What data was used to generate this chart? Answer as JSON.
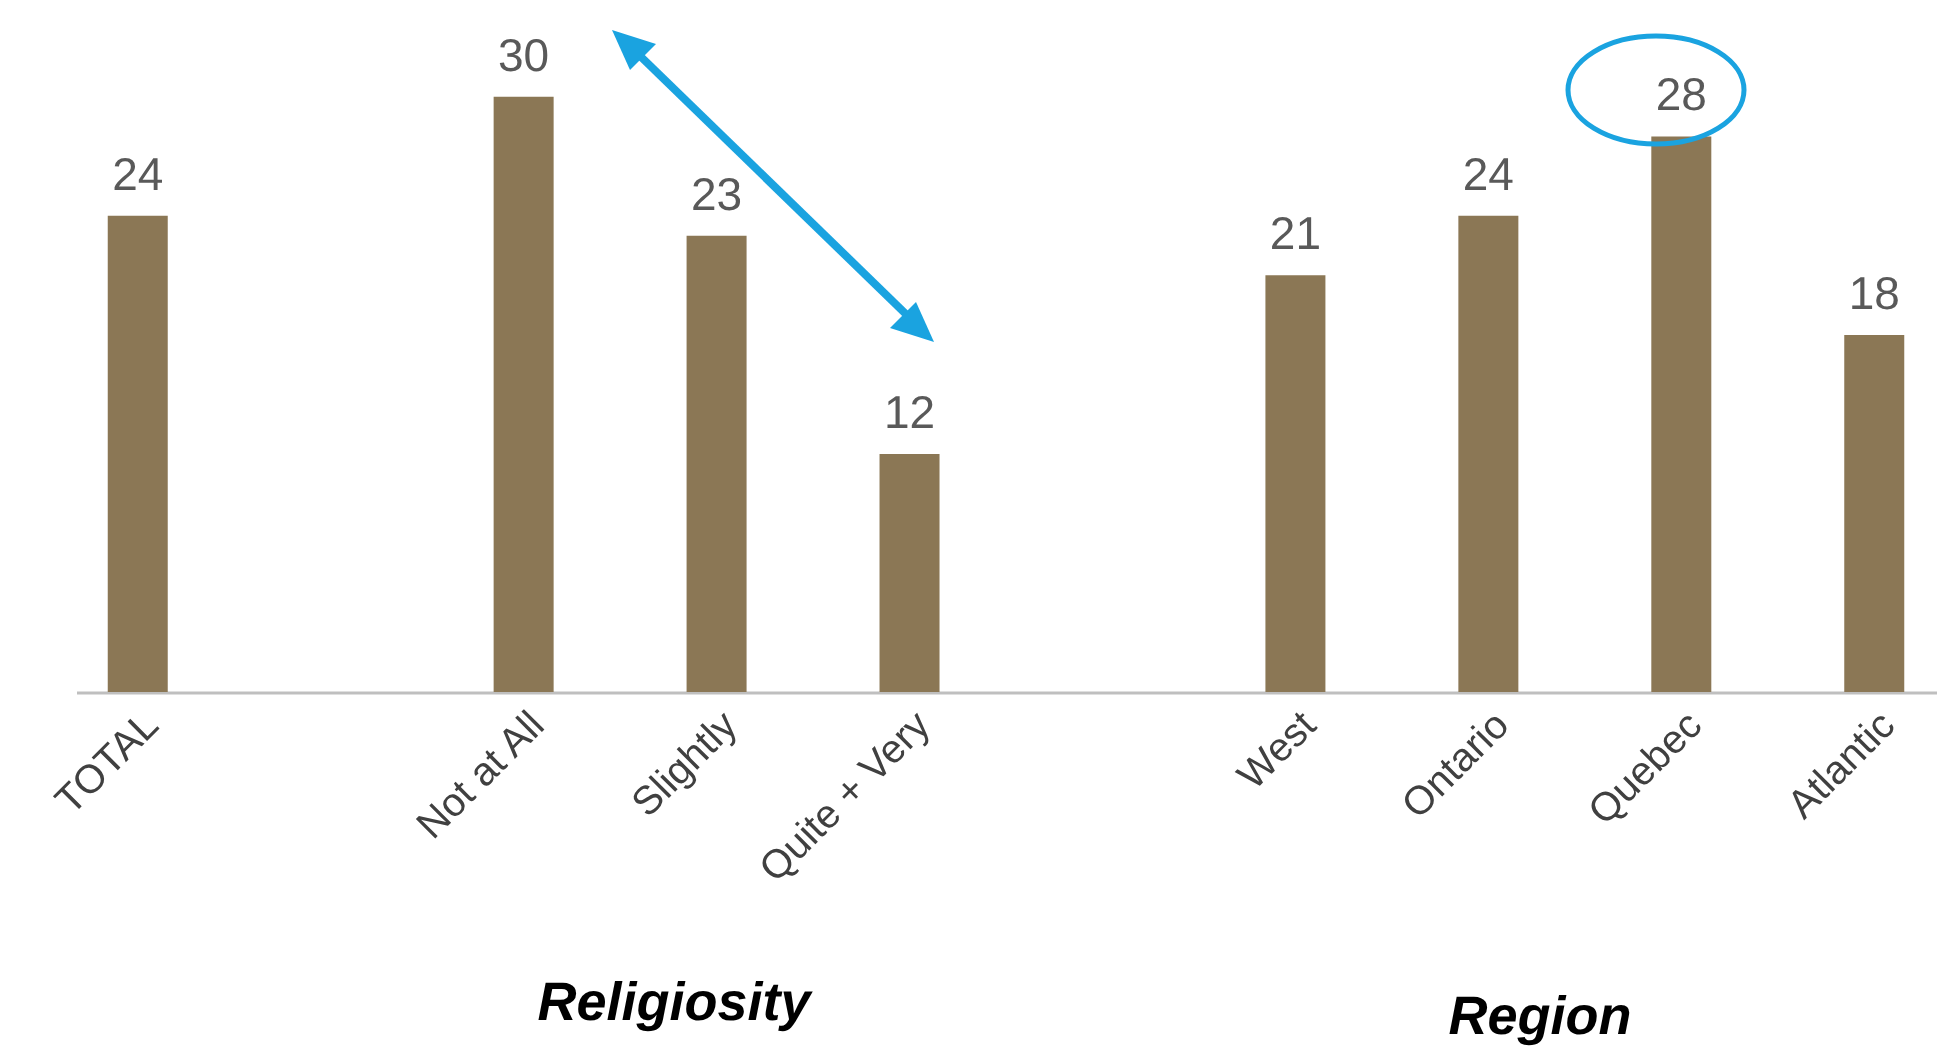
{
  "chart_data": {
    "type": "bar",
    "categories": [
      "TOTAL",
      null,
      "Not at All",
      "Slightly",
      "Quite + Very",
      null,
      "West",
      "Ontario",
      "Quebec",
      "Atlantic"
    ],
    "values": [
      24,
      null,
      30,
      23,
      12,
      null,
      21,
      24,
      28,
      18
    ],
    "color": "#8b7755",
    "data_labels": true,
    "annotations": [
      "Religiosity",
      "Region"
    ]
  }
}
